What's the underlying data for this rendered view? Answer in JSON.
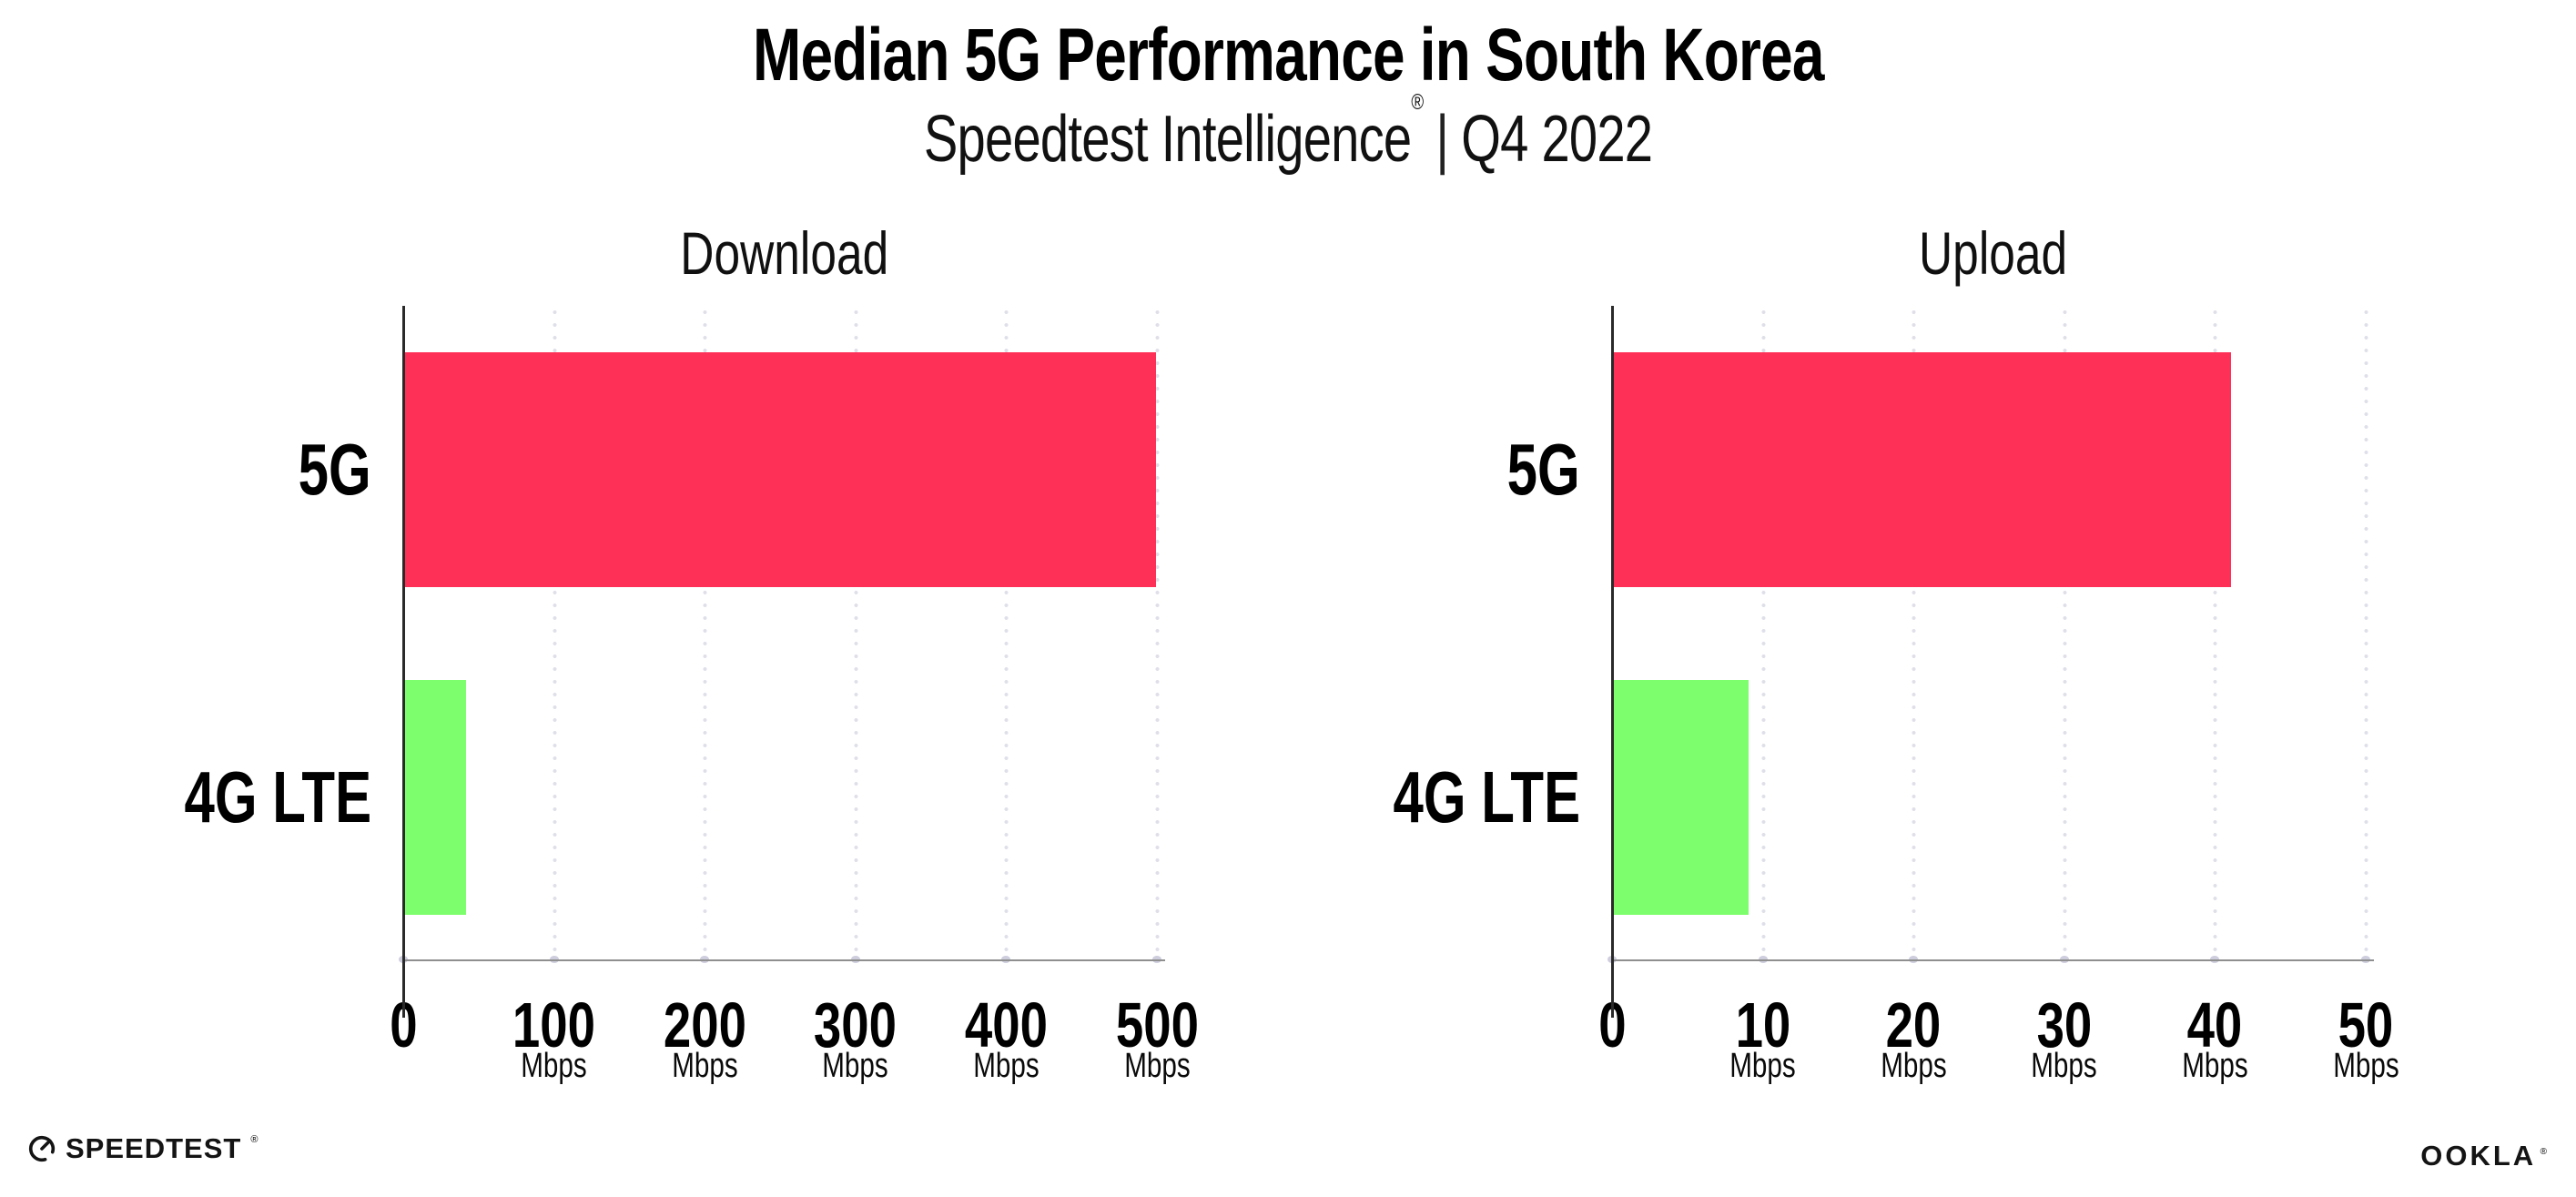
{
  "header": {
    "title": "Median 5G Performance in South Korea",
    "subtitle": {
      "brand": "Speedtest Intelligence",
      "reg": "®",
      "separator": "|",
      "period": "Q4 2022"
    }
  },
  "colors": {
    "bar_5g": "#ff3057",
    "bar_4g_lte": "#7dfe6c",
    "grid_dot": "#dfdfe9",
    "tick_dot": "#cdcdde",
    "x_axis_line": "#8f8f8f",
    "y_axis_line": "#2a2a2a",
    "text": "#000000"
  },
  "chart_data": [
    {
      "type": "bar",
      "orientation": "horizontal",
      "title": "Download",
      "categories": [
        "5G",
        "4G LTE"
      ],
      "values": [
        499,
        41
      ],
      "value_unit": "Mbps",
      "xlim": [
        0,
        500
      ],
      "xticks": [
        0,
        100,
        200,
        300,
        400,
        500
      ],
      "xtick_unit": "Mbps",
      "bar_colors": [
        "#ff3057",
        "#7dfe6c"
      ],
      "grid": "vertical-dotted",
      "legend_position": "none"
    },
    {
      "type": "bar",
      "orientation": "horizontal",
      "title": "Upload",
      "categories": [
        "5G",
        "4G LTE"
      ],
      "values": [
        41,
        9
      ],
      "value_unit": "Mbps",
      "xlim": [
        0,
        50
      ],
      "xticks": [
        0,
        10,
        20,
        30,
        40,
        50
      ],
      "xtick_unit": "Mbps",
      "bar_colors": [
        "#ff3057",
        "#7dfe6c"
      ],
      "grid": "vertical-dotted",
      "legend_position": "none"
    }
  ],
  "footer": {
    "speedtest": {
      "label": "SPEEDTEST",
      "reg": "®"
    },
    "ookla": {
      "label": "OOKLA",
      "reg": "®"
    }
  }
}
